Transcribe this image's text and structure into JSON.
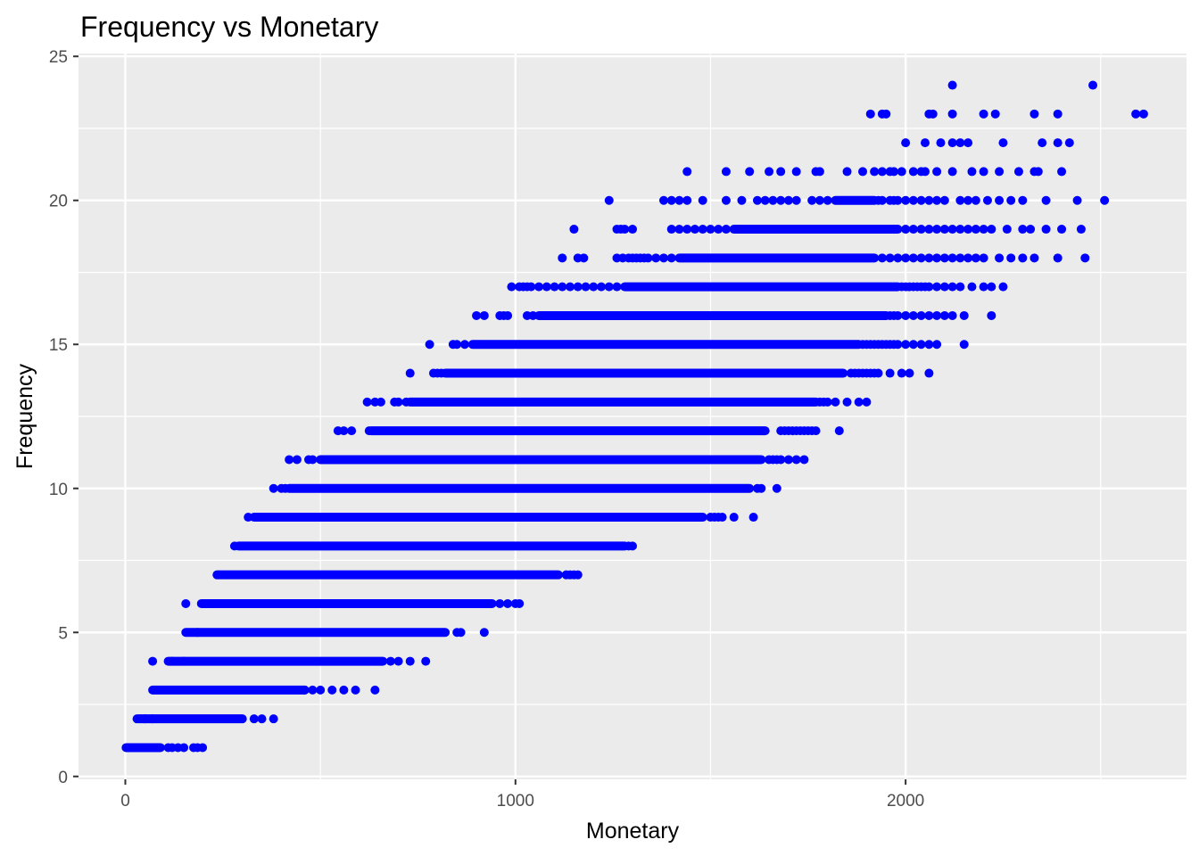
{
  "chart_data": {
    "type": "scatter",
    "title": "Frequency vs Monetary",
    "xlabel": "Monetary",
    "ylabel": "Frequency",
    "xlim": [
      -120,
      2720
    ],
    "ylim": [
      -0.1,
      25.1
    ],
    "x_ticks": [
      0,
      1000,
      2000
    ],
    "x_tick_labels": [
      "0",
      "1000",
      "2000"
    ],
    "y_ticks": [
      0,
      5,
      10,
      15,
      20,
      25
    ],
    "y_tick_labels": [
      "0",
      "5",
      "10",
      "15",
      "20",
      "25"
    ],
    "grid": true,
    "legend": "none",
    "point_color": "#0000ff",
    "panel_background": "#ebebeb",
    "grid_color": "#ffffff",
    "series": [
      {
        "point_groups": [
          {
            "y": 1,
            "dense": [
              [
                2,
                90
              ]
            ],
            "points": [
              110,
              120,
              135,
              150,
              175,
              185,
              198
            ]
          },
          {
            "y": 2,
            "dense": [
              [
                30,
                300
              ]
            ],
            "points": [
              50,
              70,
              330,
              350,
              380
            ]
          },
          {
            "y": 3,
            "dense": [
              [
                70,
                460
              ]
            ],
            "points": [
              460,
              480,
              500,
              530,
              560,
              590,
              640
            ]
          },
          {
            "y": 4,
            "dense": [
              [
                110,
                660
              ]
            ],
            "points": [
              70,
              120,
              150,
              680,
              700,
              730,
              770
            ]
          },
          {
            "y": 5,
            "dense": [
              [
                155,
                820
              ]
            ],
            "points": [
              185,
              850,
              860,
              920
            ]
          },
          {
            "y": 6,
            "dense": [
              [
                195,
                940
              ]
            ],
            "points": [
              155,
              960,
              980,
              1000,
              1010
            ]
          },
          {
            "y": 7,
            "dense": [
              [
                235,
                1110
              ]
            ],
            "points": [
              1130,
              1140,
              1150,
              1160
            ]
          },
          {
            "y": 8,
            "dense": [
              [
                290,
                1280
              ]
            ],
            "points": [
              280,
              1290,
              1300
            ]
          },
          {
            "y": 9,
            "dense": [
              [
                330,
                1480
              ]
            ],
            "points": [
              315,
              1500,
              1510,
              1520,
              1530,
              1560,
              1610
            ]
          },
          {
            "y": 10,
            "dense": [
              [
                420,
                1600
              ]
            ],
            "points": [
              380,
              400,
              410,
              1620,
              1630,
              1670
            ]
          },
          {
            "y": 11,
            "dense": [
              [
                500,
                1630
              ]
            ],
            "points": [
              420,
              440,
              470,
              480,
              1650,
              1660,
              1670,
              1680,
              1700,
              1720,
              1740
            ]
          },
          {
            "y": 12,
            "dense": [
              [
                630,
                1640
              ]
            ],
            "points": [
              545,
              560,
              580,
              625,
              1680,
              1690,
              1700,
              1710,
              1720,
              1730,
              1740,
              1750,
              1760,
              1770,
              1830
            ]
          },
          {
            "y": 13,
            "dense": [
              [
                730,
                1770
              ]
            ],
            "points": [
              620,
              640,
              655,
              690,
              700,
              720,
              1780,
              1790,
              1800,
              1820,
              1850,
              1880,
              1900
            ]
          },
          {
            "y": 14,
            "dense": [
              [
                820,
                1840
              ]
            ],
            "points": [
              730,
              790,
              800,
              810,
              1860,
              1870,
              1880,
              1890,
              1900,
              1910,
              1920,
              1930,
              1960,
              1990,
              2010,
              2060
            ]
          },
          {
            "y": 15,
            "dense": [
              [
                890,
                1880
              ]
            ],
            "points": [
              780,
              840,
              850,
              870,
              1890,
              1900,
              1910,
              1920,
              1930,
              1940,
              1950,
              1960,
              1970,
              1980,
              2000,
              2020,
              2040,
              2060,
              2080,
              2150
            ]
          },
          {
            "y": 16,
            "dense": [
              [
                1060,
                1950
              ]
            ],
            "points": [
              900,
              920,
              960,
              970,
              980,
              1030,
              1045,
              1960,
              1970,
              1980,
              2000,
              2020,
              2040,
              2060,
              2080,
              2100,
              2120,
              2150,
              2220
            ]
          },
          {
            "y": 17,
            "dense": [
              [
                1280,
                1980
              ]
            ],
            "points": [
              990,
              1010,
              1020,
              1030,
              1040,
              1060,
              1080,
              1100,
              1120,
              1140,
              1160,
              1180,
              1200,
              1220,
              1240,
              1260,
              1990,
              2000,
              2010,
              2020,
              2030,
              2040,
              2050,
              2060,
              2080,
              2100,
              2120,
              2140,
              2170,
              2200,
              2220,
              2250
            ]
          },
          {
            "y": 18,
            "dense": [
              [
                1420,
                1920
              ]
            ],
            "points": [
              1120,
              1160,
              1175,
              1260,
              1275,
              1290,
              1300,
              1310,
              1320,
              1330,
              1340,
              1360,
              1380,
              1400,
              1940,
              1960,
              1980,
              2000,
              2020,
              2040,
              2060,
              2080,
              2100,
              2120,
              2140,
              2160,
              2180,
              2200,
              2240,
              2270,
              2300,
              2330,
              2390,
              2460
            ]
          },
          {
            "y": 19,
            "dense": [
              [
                1560,
                1980
              ]
            ],
            "points": [
              1150,
              1260,
              1270,
              1280,
              1300,
              1400,
              1420,
              1440,
              1460,
              1480,
              1500,
              1520,
              1540,
              2000,
              2020,
              2040,
              2060,
              2080,
              2100,
              2120,
              2140,
              2160,
              2180,
              2200,
              2220,
              2260,
              2300,
              2320,
              2360,
              2400,
              2450
            ]
          },
          {
            "y": 20,
            "dense": [
              [
                1820,
                1920
              ]
            ],
            "points": [
              1240,
              1380,
              1400,
              1420,
              1440,
              1480,
              1540,
              1580,
              1620,
              1640,
              1660,
              1680,
              1700,
              1720,
              1760,
              1780,
              1800,
              1930,
              1940,
              1960,
              1970,
              1980,
              2000,
              2020,
              2040,
              2060,
              2080,
              2100,
              2140,
              2160,
              2180,
              2210,
              2240,
              2270,
              2300,
              2360,
              2440,
              2510
            ]
          },
          {
            "y": 21,
            "points": [
              1440,
              1540,
              1600,
              1650,
              1680,
              1720,
              1770,
              1780,
              1850,
              1890,
              1920,
              1940,
              1960,
              1970,
              1990,
              2020,
              2040,
              2050,
              2080,
              2120,
              2170,
              2200,
              2240,
              2290,
              2330,
              2340,
              2400
            ]
          },
          {
            "y": 22,
            "points": [
              2000,
              2050,
              2090,
              2120,
              2140,
              2160,
              2250,
              2350,
              2390,
              2420
            ]
          },
          {
            "y": 23,
            "points": [
              1910,
              1940,
              1950,
              2060,
              2070,
              2120,
              2200,
              2230,
              2330,
              2390,
              2590,
              2610
            ]
          },
          {
            "y": 24,
            "points": [
              2120,
              2480
            ]
          }
        ]
      }
    ]
  }
}
